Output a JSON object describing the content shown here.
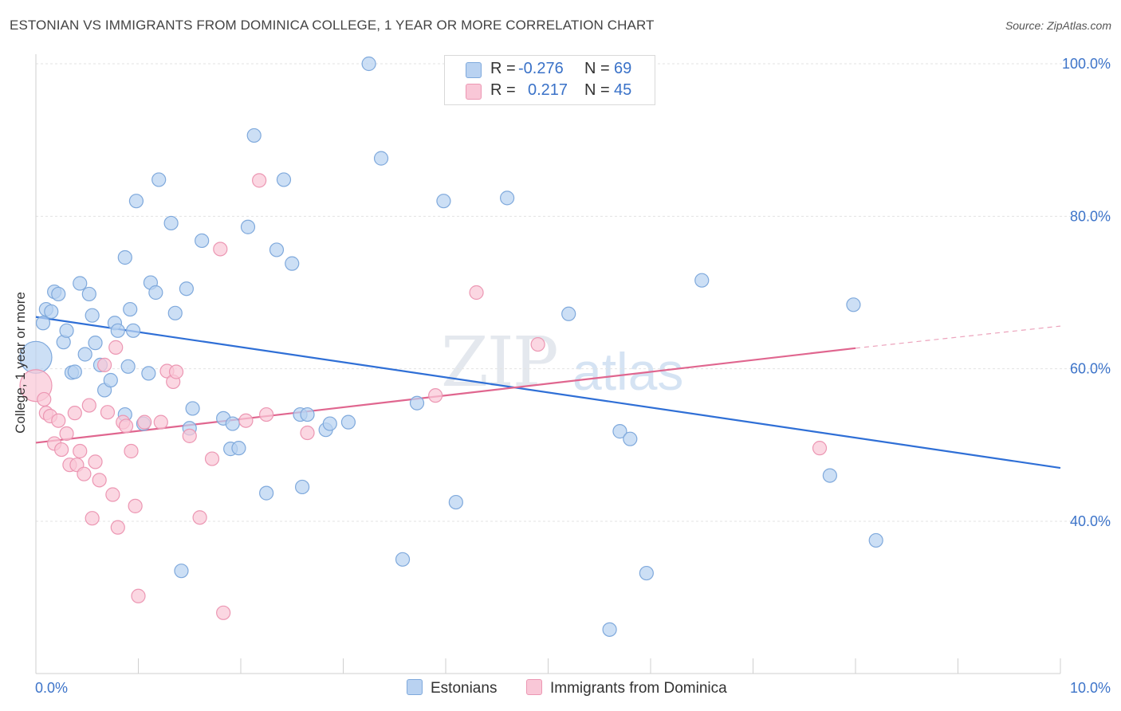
{
  "title": "ESTONIAN VS IMMIGRANTS FROM DOMINICA COLLEGE, 1 YEAR OR MORE CORRELATION CHART",
  "source": "Source: ZipAtlas.com",
  "watermark": {
    "zip": "ZIP",
    "atlas": "atlas"
  },
  "legend": {
    "rows": [
      {
        "r_label": "R =",
        "r_value": "-0.276",
        "n_label": "N =",
        "n_value": "69"
      },
      {
        "r_label": "R =",
        "r_value": "0.217",
        "n_label": "N =",
        "n_value": "45"
      }
    ]
  },
  "colors": {
    "estonians_fill": "#b9d2f1",
    "estonians_stroke": "#7fa9dc",
    "estonians_line": "#2f6fd6",
    "dominica_fill": "#f9c7d7",
    "dominica_stroke": "#ec97b3",
    "dominica_line": "#e0668f",
    "axis_text": "#3d74c9"
  },
  "chart_data": {
    "type": "scatter",
    "title": "ESTONIAN VS IMMIGRANTS FROM DOMINICA COLLEGE, 1 YEAR OR MORE CORRELATION CHART",
    "xlabel": "",
    "ylabel": "College, 1 year or more",
    "xlim": [
      0,
      10
    ],
    "ylim": [
      20,
      102
    ],
    "x_tick_labels": [
      "0.0%",
      "10.0%"
    ],
    "y_ticks": [
      40,
      60,
      80,
      100
    ],
    "y_tick_labels": [
      "40.0%",
      "60.0%",
      "80.0%",
      "100.0%"
    ],
    "legend_position": "top-center",
    "series": [
      {
        "name": "Estonians",
        "r": -0.276,
        "n": 69,
        "trend": {
          "x": [
            0.0,
            10.0
          ],
          "y": [
            66.8,
            47.0
          ]
        },
        "points": [
          {
            "x": 0.0,
            "y": 61.5,
            "big": true
          },
          {
            "x": 0.07,
            "y": 66.0
          },
          {
            "x": 0.1,
            "y": 67.8
          },
          {
            "x": 0.15,
            "y": 67.5
          },
          {
            "x": 0.18,
            "y": 70.1
          },
          {
            "x": 0.22,
            "y": 69.8
          },
          {
            "x": 0.27,
            "y": 63.5
          },
          {
            "x": 0.3,
            "y": 65.0
          },
          {
            "x": 0.35,
            "y": 59.5
          },
          {
            "x": 0.38,
            "y": 59.6
          },
          {
            "x": 0.43,
            "y": 71.2
          },
          {
            "x": 0.48,
            "y": 61.9
          },
          {
            "x": 0.52,
            "y": 69.8
          },
          {
            "x": 0.55,
            "y": 67.0
          },
          {
            "x": 0.58,
            "y": 63.4
          },
          {
            "x": 0.63,
            "y": 60.5
          },
          {
            "x": 0.67,
            "y": 57.2
          },
          {
            "x": 0.73,
            "y": 58.5
          },
          {
            "x": 0.77,
            "y": 66.0
          },
          {
            "x": 0.8,
            "y": 65.0
          },
          {
            "x": 0.87,
            "y": 54.0
          },
          {
            "x": 0.87,
            "y": 74.6
          },
          {
            "x": 0.9,
            "y": 60.3
          },
          {
            "x": 0.92,
            "y": 67.8
          },
          {
            "x": 0.95,
            "y": 65.0
          },
          {
            "x": 0.98,
            "y": 82.0
          },
          {
            "x": 1.05,
            "y": 52.8
          },
          {
            "x": 1.1,
            "y": 59.4
          },
          {
            "x": 1.12,
            "y": 71.3
          },
          {
            "x": 1.17,
            "y": 70.0
          },
          {
            "x": 1.2,
            "y": 84.8
          },
          {
            "x": 1.32,
            "y": 79.1
          },
          {
            "x": 1.36,
            "y": 67.3
          },
          {
            "x": 1.42,
            "y": 33.5
          },
          {
            "x": 1.47,
            "y": 70.5
          },
          {
            "x": 1.5,
            "y": 52.2
          },
          {
            "x": 1.53,
            "y": 54.8
          },
          {
            "x": 1.62,
            "y": 76.8
          },
          {
            "x": 1.83,
            "y": 53.5
          },
          {
            "x": 1.9,
            "y": 49.5
          },
          {
            "x": 1.92,
            "y": 52.8
          },
          {
            "x": 1.98,
            "y": 49.6
          },
          {
            "x": 2.07,
            "y": 78.6
          },
          {
            "x": 2.13,
            "y": 90.6
          },
          {
            "x": 2.25,
            "y": 43.7
          },
          {
            "x": 2.35,
            "y": 75.6
          },
          {
            "x": 2.42,
            "y": 84.8
          },
          {
            "x": 2.5,
            "y": 73.8
          },
          {
            "x": 2.58,
            "y": 54.0
          },
          {
            "x": 2.6,
            "y": 44.5
          },
          {
            "x": 2.65,
            "y": 54.0
          },
          {
            "x": 2.83,
            "y": 52.0
          },
          {
            "x": 2.87,
            "y": 52.8
          },
          {
            "x": 3.05,
            "y": 53.0
          },
          {
            "x": 3.25,
            "y": 100.0
          },
          {
            "x": 3.37,
            "y": 87.6
          },
          {
            "x": 3.58,
            "y": 35.0
          },
          {
            "x": 3.72,
            "y": 55.5
          },
          {
            "x": 3.98,
            "y": 82.0
          },
          {
            "x": 4.1,
            "y": 42.5
          },
          {
            "x": 4.6,
            "y": 82.4
          },
          {
            "x": 5.2,
            "y": 67.2
          },
          {
            "x": 5.6,
            "y": 25.8
          },
          {
            "x": 5.7,
            "y": 51.8
          },
          {
            "x": 5.8,
            "y": 50.8
          },
          {
            "x": 5.96,
            "y": 33.2
          },
          {
            "x": 6.5,
            "y": 71.6
          },
          {
            "x": 7.75,
            "y": 46.0
          },
          {
            "x": 7.98,
            "y": 68.4
          },
          {
            "x": 8.2,
            "y": 37.5
          }
        ]
      },
      {
        "name": "Immigrants from Dominica",
        "r": 0.217,
        "n": 45,
        "trend": {
          "x": [
            0.0,
            8.0
          ],
          "y": [
            50.3,
            62.7
          ]
        },
        "trend_dashed": {
          "x": [
            8.0,
            10.0
          ],
          "y": [
            62.7,
            65.6
          ]
        },
        "points": [
          {
            "x": 0.0,
            "y": 57.8,
            "big": true
          },
          {
            "x": 0.08,
            "y": 56.0
          },
          {
            "x": 0.1,
            "y": 54.2
          },
          {
            "x": 0.14,
            "y": 53.8
          },
          {
            "x": 0.18,
            "y": 50.2
          },
          {
            "x": 0.22,
            "y": 53.2
          },
          {
            "x": 0.25,
            "y": 49.4
          },
          {
            "x": 0.3,
            "y": 51.5
          },
          {
            "x": 0.33,
            "y": 47.4
          },
          {
            "x": 0.38,
            "y": 54.2
          },
          {
            "x": 0.4,
            "y": 47.4
          },
          {
            "x": 0.43,
            "y": 49.2
          },
          {
            "x": 0.47,
            "y": 46.2
          },
          {
            "x": 0.52,
            "y": 55.2
          },
          {
            "x": 0.55,
            "y": 40.4
          },
          {
            "x": 0.58,
            "y": 47.8
          },
          {
            "x": 0.62,
            "y": 45.4
          },
          {
            "x": 0.67,
            "y": 60.5
          },
          {
            "x": 0.7,
            "y": 54.3
          },
          {
            "x": 0.75,
            "y": 43.5
          },
          {
            "x": 0.78,
            "y": 62.8
          },
          {
            "x": 0.8,
            "y": 39.2
          },
          {
            "x": 0.85,
            "y": 53.0
          },
          {
            "x": 0.88,
            "y": 52.5
          },
          {
            "x": 0.93,
            "y": 49.2
          },
          {
            "x": 0.97,
            "y": 42.0
          },
          {
            "x": 1.0,
            "y": 30.2
          },
          {
            "x": 1.06,
            "y": 53.0
          },
          {
            "x": 1.22,
            "y": 53.0
          },
          {
            "x": 1.28,
            "y": 59.7
          },
          {
            "x": 1.34,
            "y": 58.3
          },
          {
            "x": 1.37,
            "y": 59.6
          },
          {
            "x": 1.5,
            "y": 51.2
          },
          {
            "x": 1.6,
            "y": 40.5
          },
          {
            "x": 1.72,
            "y": 48.2
          },
          {
            "x": 1.8,
            "y": 75.7
          },
          {
            "x": 1.83,
            "y": 28.0
          },
          {
            "x": 2.05,
            "y": 53.2
          },
          {
            "x": 2.18,
            "y": 84.7
          },
          {
            "x": 2.25,
            "y": 54.0
          },
          {
            "x": 2.65,
            "y": 51.6
          },
          {
            "x": 3.9,
            "y": 56.5
          },
          {
            "x": 4.3,
            "y": 70.0
          },
          {
            "x": 4.9,
            "y": 63.2
          },
          {
            "x": 7.65,
            "y": 49.6
          }
        ]
      }
    ],
    "legend_entries": [
      "Estonians",
      "Immigrants from Dominica"
    ]
  }
}
